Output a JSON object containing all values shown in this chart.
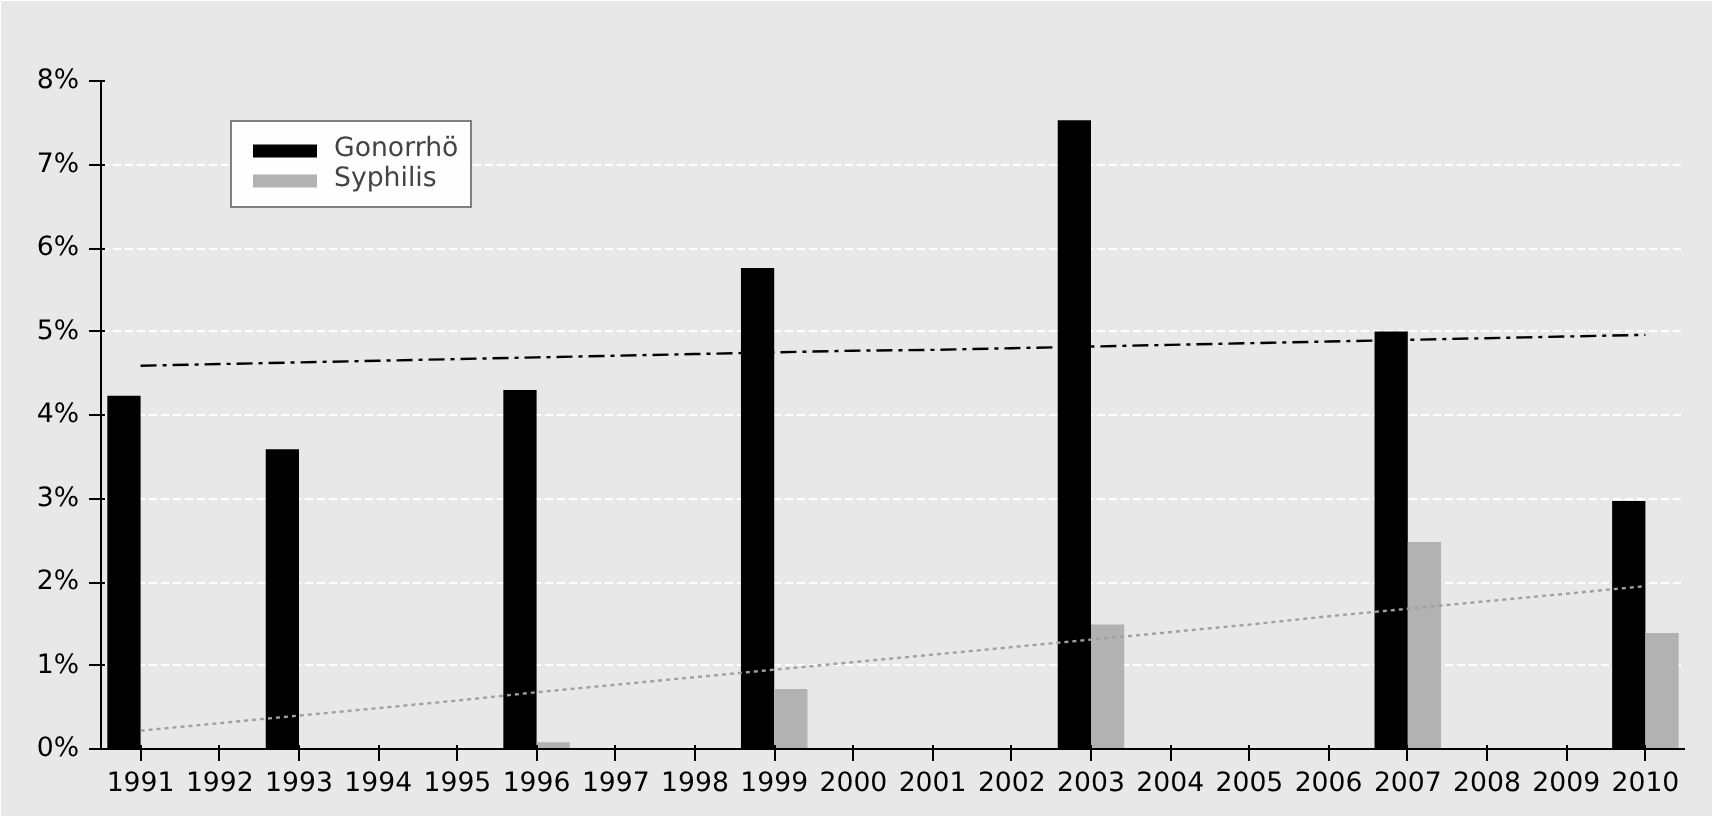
{
  "chart_data": {
    "type": "bar",
    "categories": [
      "1991",
      "1992",
      "1993",
      "1994",
      "1995",
      "1996",
      "1997",
      "1998",
      "1999",
      "2000",
      "2001",
      "2002",
      "2003",
      "2004",
      "2005",
      "2006",
      "2007",
      "2008",
      "2009",
      "2010"
    ],
    "series": [
      {
        "name": "Gonorrhö",
        "color": "#000000",
        "values": [
          4.23,
          null,
          3.59,
          null,
          null,
          4.3,
          null,
          null,
          5.76,
          null,
          null,
          null,
          7.53,
          null,
          null,
          null,
          5.0,
          null,
          null,
          2.97
        ]
      },
      {
        "name": "Syphilis",
        "color": "#b2b2b2",
        "values": [
          null,
          null,
          null,
          null,
          null,
          0.08,
          null,
          null,
          0.72,
          null,
          null,
          null,
          1.49,
          null,
          null,
          null,
          2.48,
          null,
          null,
          1.39
        ]
      },
      {
        "type": "line",
        "color": "#000000",
        "line_style": "dashed",
        "values": [
          4.59,
          4.61,
          4.63,
          4.65,
          4.67,
          4.69,
          4.71,
          4.73,
          4.75,
          4.77,
          4.78,
          4.8,
          4.82,
          4.84,
          4.86,
          4.88,
          4.9,
          4.92,
          4.94,
          4.96
        ]
      },
      {
        "type": "line",
        "color": "#a0a0a0",
        "line_style": "dotted",
        "values": [
          0.22,
          0.31,
          0.4,
          0.49,
          0.58,
          0.68,
          0.77,
          0.86,
          0.95,
          1.04,
          1.13,
          1.22,
          1.31,
          1.4,
          1.49,
          1.59,
          1.68,
          1.77,
          1.86,
          1.95
        ]
      }
    ],
    "ylim": [
      0,
      8
    ],
    "yticks": [
      {
        "value": 0,
        "label": "0%"
      },
      {
        "value": 1,
        "label": "1%"
      },
      {
        "value": 2,
        "label": "2%"
      },
      {
        "value": 3,
        "label": "3%"
      },
      {
        "value": 4,
        "label": "4%"
      },
      {
        "value": 5,
        "label": "5%"
      },
      {
        "value": 6,
        "label": "6%"
      },
      {
        "value": 7,
        "label": "7%"
      },
      {
        "value": 8,
        "label": "8%"
      }
    ],
    "grid": "y",
    "legend": "top left"
  }
}
